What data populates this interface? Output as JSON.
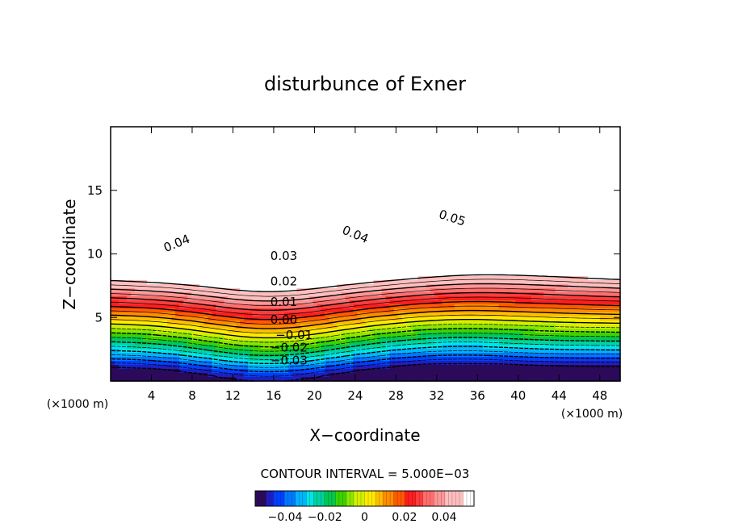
{
  "chart_data": {
    "type": "contour",
    "title": "disturbunce of Exner",
    "xlabel": "X−coordinate",
    "ylabel": "Z−coordinate",
    "x_unit_left": "(×1000 m)",
    "x_unit_right": "(×1000 m)",
    "xlim": [
      0,
      50
    ],
    "ylim": [
      0,
      20
    ],
    "x_ticks": [
      {
        "value": 4,
        "label": "4"
      },
      {
        "value": 8,
        "label": "8"
      },
      {
        "value": 12,
        "label": "12"
      },
      {
        "value": 16,
        "label": "16"
      },
      {
        "value": 20,
        "label": "20"
      },
      {
        "value": 24,
        "label": "24"
      },
      {
        "value": 28,
        "label": "28"
      },
      {
        "value": 32,
        "label": "32"
      },
      {
        "value": 36,
        "label": "36"
      },
      {
        "value": 40,
        "label": "40"
      },
      {
        "value": 44,
        "label": "44"
      },
      {
        "value": 48,
        "label": "48"
      }
    ],
    "y_ticks": [
      {
        "value": 5,
        "label": "5"
      },
      {
        "value": 10,
        "label": "10"
      },
      {
        "value": 15,
        "label": "15"
      }
    ],
    "contour_interval_text": "CONTOUR INTERVAL = 5.000E−03",
    "contour_interval": 0.005,
    "level_min": -0.055,
    "level_max": 0.05,
    "trough_x": 15.5,
    "contour_labels": [
      {
        "text": "0.05",
        "x": 33.5,
        "z": 12.8,
        "angle": 18
      },
      {
        "text": "0.04",
        "x": 6.5,
        "z": 10.8,
        "angle": -22
      },
      {
        "text": "0.04",
        "x": 24.0,
        "z": 11.5,
        "angle": 22
      },
      {
        "text": "0.03",
        "x": 17.0,
        "z": 9.8,
        "angle": 0
      },
      {
        "text": "0.02",
        "x": 17.0,
        "z": 7.8,
        "angle": 0
      },
      {
        "text": "0.01",
        "x": 17.0,
        "z": 6.2,
        "angle": 0
      },
      {
        "text": "0.00",
        "x": 17.0,
        "z": 4.8,
        "angle": 0
      },
      {
        "text": "−0.01",
        "x": 18.0,
        "z": 3.6,
        "angle": 0
      },
      {
        "text": "−0.02",
        "x": 17.5,
        "z": 2.6,
        "angle": 0
      },
      {
        "text": "−0.03",
        "x": 17.5,
        "z": 1.6,
        "angle": 0
      }
    ],
    "colorbar": {
      "min": -0.055,
      "max": 0.055,
      "ticks": [
        {
          "value": -0.04,
          "label": "−0.04"
        },
        {
          "value": -0.02,
          "label": "−0.02"
        },
        {
          "value": 0,
          "label": "0"
        },
        {
          "value": 0.02,
          "label": "0.02"
        },
        {
          "value": 0.04,
          "label": "0.04"
        }
      ]
    },
    "colormap": [
      "#2b0a5a",
      "#1f1fbf",
      "#0040ff",
      "#0078ff",
      "#00b4ff",
      "#00e6e6",
      "#00d2a0",
      "#00c850",
      "#3cd200",
      "#8ce600",
      "#d2f000",
      "#ffeb00",
      "#ffbe00",
      "#ff8c00",
      "#ff5a00",
      "#ff1e1e",
      "#ff3c3c",
      "#ff6e6e",
      "#ff9696",
      "#ffbebe",
      "#ffffff"
    ]
  }
}
